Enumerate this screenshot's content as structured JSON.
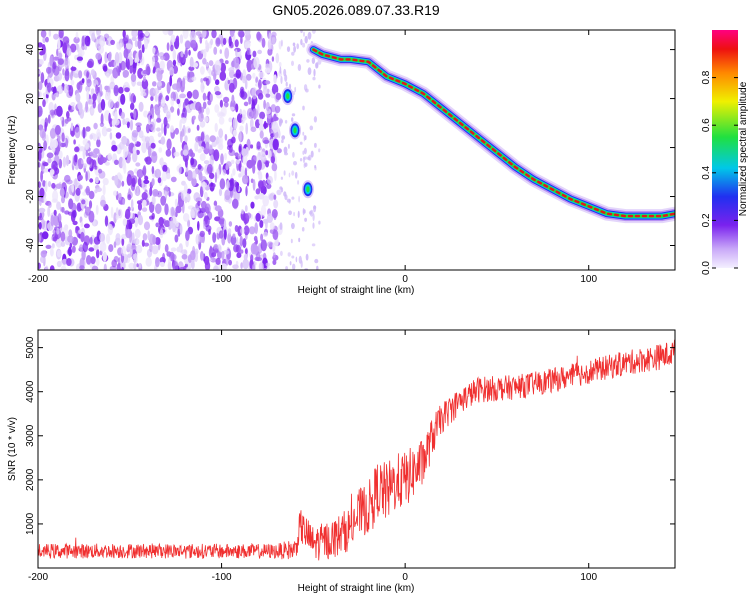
{
  "title": "GN05.2026.089.07.33.R19",
  "colors": {
    "snr_line": "#f03030",
    "noise": "#7a22ee",
    "track_core": "#e01a1a"
  },
  "chart_data": [
    {
      "type": "heatmap",
      "xlabel": "Height of straight line (km)",
      "ylabel": "Frequency (Hz)",
      "xlim": [
        -200,
        147
      ],
      "ylim": [
        -50,
        48
      ],
      "x_ticks": [
        "-200",
        "-100",
        "0",
        "100"
      ],
      "y_ticks": [
        "40",
        "20",
        "0",
        "-20",
        "-40"
      ],
      "colorbar": {
        "label": "Normalized spectral amplitude",
        "range": [
          0,
          1
        ],
        "ticks": [
          "0.0",
          "0.2",
          "0.4",
          "0.6",
          "0.8"
        ],
        "colormap": "rainbow (violet → blue → cyan → green → yellow → red → magenta)"
      },
      "signal_track": {
        "x": [
          -50,
          -45,
          -35,
          -30,
          -20,
          -15,
          -10,
          0,
          10,
          20,
          30,
          40,
          50,
          60,
          70,
          80,
          90,
          100,
          110,
          120,
          130,
          140,
          147
        ],
        "y": [
          40,
          38,
          36,
          36,
          35,
          32,
          29,
          26,
          22,
          16,
          10,
          4,
          -2,
          -8,
          -13,
          -17,
          -21,
          -24,
          -27,
          -28,
          -28,
          -28,
          -27
        ]
      },
      "isolated_blobs": [
        {
          "x": -64,
          "y": 21
        },
        {
          "x": -60,
          "y": 7
        },
        {
          "x": -53,
          "y": -17
        }
      ],
      "noise_region_x": [
        -200,
        -68
      ]
    },
    {
      "type": "line",
      "xlabel": "Height of straight line (km)",
      "ylabel": "SNR (10 * v/v)",
      "xlim": [
        -200,
        147
      ],
      "ylim": [
        0,
        5400
      ],
      "x_ticks": [
        "-200",
        "-100",
        "0",
        "100"
      ],
      "y_ticks": [
        "1000",
        "2000",
        "3000",
        "4000",
        "5000"
      ],
      "series": [
        {
          "x": [
            -200,
            -150,
            -100,
            -70,
            -60,
            -57,
            -50,
            -40,
            -30,
            -25,
            -20,
            -15,
            -10,
            -5,
            0,
            10,
            15,
            20,
            30,
            40,
            60,
            80,
            100,
            120,
            140,
            147
          ],
          "y": [
            380,
            390,
            380,
            380,
            420,
            950,
            550,
            650,
            900,
            1250,
            1350,
            1800,
            1700,
            1950,
            2000,
            2400,
            3000,
            3400,
            3800,
            4050,
            4100,
            4250,
            4450,
            4650,
            4800,
            4900
          ],
          "noise_amplitude": [
            170,
            170,
            170,
            170,
            250,
            400,
            400,
            450,
            500,
            550,
            600,
            650,
            700,
            650,
            650,
            550,
            450,
            350,
            300,
            300,
            280,
            280,
            280,
            280,
            300,
            300
          ]
        }
      ]
    }
  ]
}
